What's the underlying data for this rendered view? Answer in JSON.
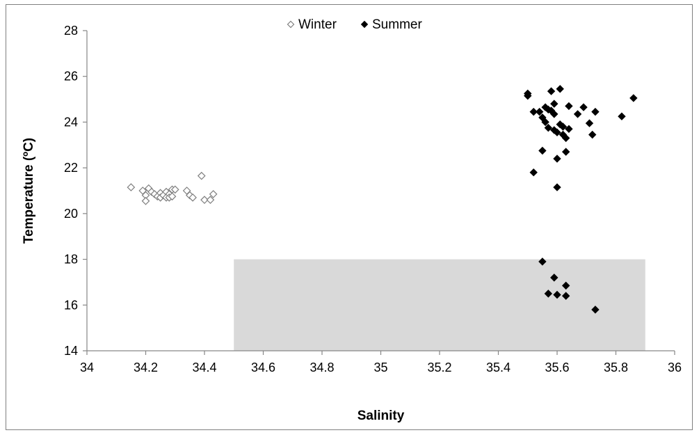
{
  "chart_data": {
    "type": "scatter",
    "xlabel": "Salinity",
    "ylabel": "Temperature (ºC)",
    "xlim": [
      34,
      36
    ],
    "ylim": [
      14,
      28
    ],
    "xticks": [
      "34",
      "34.2",
      "34.4",
      "34.6",
      "34.8",
      "35",
      "35.2",
      "35.4",
      "35.6",
      "35.8",
      "36"
    ],
    "yticks": [
      "14",
      "16",
      "18",
      "20",
      "22",
      "24",
      "26",
      "28"
    ],
    "grid": false,
    "legend": {
      "placement": "top-center"
    },
    "shaded_region": {
      "x": [
        34.5,
        35.9
      ],
      "y": [
        14,
        18
      ],
      "color": "#d9d9d9"
    },
    "series": [
      {
        "name": "Winter",
        "marker": "open-diamond",
        "color": "#7f7f7f",
        "points": [
          [
            34.15,
            21.15
          ],
          [
            34.19,
            21.0
          ],
          [
            34.2,
            20.8
          ],
          [
            34.2,
            20.55
          ],
          [
            34.21,
            21.1
          ],
          [
            34.22,
            20.95
          ],
          [
            34.23,
            20.85
          ],
          [
            34.24,
            20.75
          ],
          [
            34.25,
            20.9
          ],
          [
            34.25,
            20.7
          ],
          [
            34.26,
            20.8
          ],
          [
            34.27,
            20.95
          ],
          [
            34.27,
            20.7
          ],
          [
            34.28,
            20.85
          ],
          [
            34.28,
            20.7
          ],
          [
            34.29,
            21.05
          ],
          [
            34.29,
            20.75
          ],
          [
            34.3,
            21.05
          ],
          [
            34.34,
            21.0
          ],
          [
            34.35,
            20.8
          ],
          [
            34.36,
            20.7
          ],
          [
            34.39,
            21.65
          ],
          [
            34.4,
            20.6
          ],
          [
            34.42,
            20.6
          ],
          [
            34.43,
            20.85
          ]
        ]
      },
      {
        "name": "Summer",
        "marker": "filled-diamond",
        "color": "#000000",
        "points": [
          [
            35.5,
            25.25
          ],
          [
            35.5,
            25.15
          ],
          [
            35.52,
            24.45
          ],
          [
            35.52,
            21.8
          ],
          [
            35.54,
            24.45
          ],
          [
            35.55,
            24.2
          ],
          [
            35.55,
            22.75
          ],
          [
            35.56,
            24.65
          ],
          [
            35.56,
            24.0
          ],
          [
            35.57,
            24.55
          ],
          [
            35.57,
            23.75
          ],
          [
            35.58,
            25.35
          ],
          [
            35.58,
            24.5
          ],
          [
            35.59,
            24.8
          ],
          [
            35.59,
            24.35
          ],
          [
            35.59,
            23.65
          ],
          [
            35.6,
            23.55
          ],
          [
            35.6,
            22.4
          ],
          [
            35.6,
            21.15
          ],
          [
            35.61,
            25.45
          ],
          [
            35.61,
            23.9
          ],
          [
            35.62,
            23.8
          ],
          [
            35.62,
            23.45
          ],
          [
            35.63,
            23.3
          ],
          [
            35.63,
            22.7
          ],
          [
            35.64,
            24.7
          ],
          [
            35.64,
            23.7
          ],
          [
            35.67,
            24.35
          ],
          [
            35.69,
            24.65
          ],
          [
            35.71,
            23.95
          ],
          [
            35.72,
            23.45
          ],
          [
            35.73,
            24.45
          ],
          [
            35.82,
            24.25
          ],
          [
            35.86,
            25.05
          ],
          [
            35.55,
            17.9
          ],
          [
            35.59,
            17.2
          ],
          [
            35.57,
            16.5
          ],
          [
            35.6,
            16.45
          ],
          [
            35.63,
            16.85
          ],
          [
            35.63,
            16.4
          ],
          [
            35.73,
            15.8
          ]
        ]
      }
    ]
  }
}
